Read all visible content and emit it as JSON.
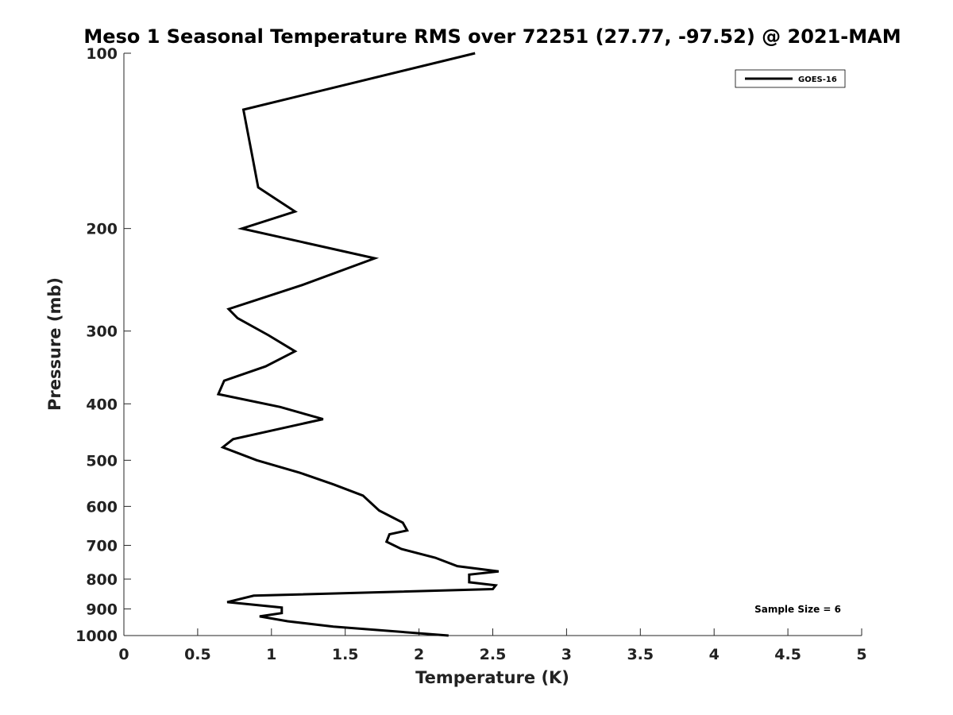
{
  "chart_data": {
    "type": "line",
    "title": "Meso 1 Seasonal Temperature RMS over 72251 (27.77, -97.52) @ 2021-MAM",
    "xlabel": "Temperature (K)",
    "ylabel": "Pressure (mb)",
    "xlim": [
      0,
      5
    ],
    "ylim": [
      100,
      1000
    ],
    "y_scale": "log",
    "y_reversed": true,
    "x_ticks": [
      0,
      0.5,
      1,
      1.5,
      2,
      2.5,
      3,
      3.5,
      4,
      4.5,
      5
    ],
    "x_tick_labels": [
      "0",
      "0.5",
      "1",
      "1.5",
      "2",
      "2.5",
      "3",
      "3.5",
      "4",
      "4.5",
      "5"
    ],
    "y_ticks": [
      100,
      200,
      300,
      400,
      500,
      600,
      700,
      800,
      900,
      1000
    ],
    "y_tick_labels": [
      "100",
      "200",
      "300",
      "400",
      "500",
      "600",
      "700",
      "800",
      "900",
      "1000"
    ],
    "grid": false,
    "legend_position": "top-right",
    "series": [
      {
        "name": "GOES-16",
        "color": "#000000",
        "points": [
          [
            2.38,
            100
          ],
          [
            0.81,
            125
          ],
          [
            0.87,
            150
          ],
          [
            0.91,
            170
          ],
          [
            1.16,
            187
          ],
          [
            0.8,
            200
          ],
          [
            1.7,
            225
          ],
          [
            1.21,
            250
          ],
          [
            0.71,
            275
          ],
          [
            0.77,
            285
          ],
          [
            0.98,
            305
          ],
          [
            1.16,
            325
          ],
          [
            0.96,
            345
          ],
          [
            0.68,
            365
          ],
          [
            0.64,
            385
          ],
          [
            1.06,
            405
          ],
          [
            1.35,
            425
          ],
          [
            0.74,
            460
          ],
          [
            0.67,
            475
          ],
          [
            0.9,
            500
          ],
          [
            1.19,
            525
          ],
          [
            1.42,
            550
          ],
          [
            1.62,
            575
          ],
          [
            1.73,
            610
          ],
          [
            1.89,
            640
          ],
          [
            1.92,
            660
          ],
          [
            1.8,
            670
          ],
          [
            1.78,
            690
          ],
          [
            1.88,
            710
          ],
          [
            2.11,
            735
          ],
          [
            2.26,
            760
          ],
          [
            2.54,
            776
          ],
          [
            2.34,
            786
          ],
          [
            2.34,
            810
          ],
          [
            2.52,
            820
          ],
          [
            2.5,
            832
          ],
          [
            0.88,
            854
          ],
          [
            0.7,
            876
          ],
          [
            1.07,
            895
          ],
          [
            1.07,
            915
          ],
          [
            0.92,
            927
          ],
          [
            1.11,
            945
          ],
          [
            1.42,
            965
          ],
          [
            2.2,
            1000
          ]
        ]
      }
    ],
    "annotations": [
      {
        "text": "Sample Size = 6",
        "position": "bottom-right"
      }
    ]
  }
}
